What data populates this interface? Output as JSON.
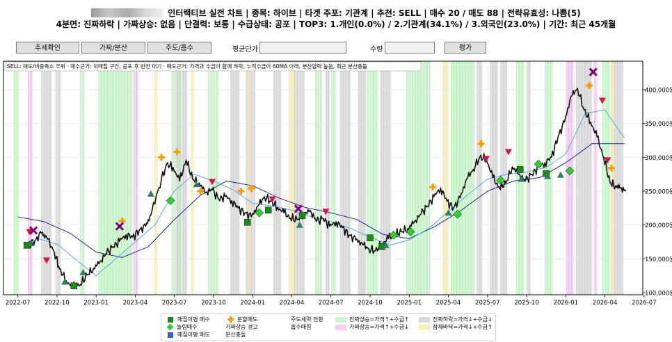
{
  "header": {
    "title_line1": "인터랙티브 실전 차트  |  종목: 하이브  |  타겟 주포: 기관계  |  추천: SELL  |  매수 20 / 매도 88  |  전략유효성: 나쁨(5)",
    "title_line2": "4분면: 진짜하락  |  가짜상승: 없음  |  단결력: 보통  |  수급상태: 공포  |  TOP3: 1.개인(0.0%) / 2.기관계(34.1%) / 3.외국인(23.0%)  |  기간: 최근 45개월"
  },
  "toolbar": {
    "btn_trend": "추세확인",
    "btn_real_fake": "가짜/분산",
    "btn_dist": "주도/흡수",
    "avg_price_label": "평균단가",
    "avg_price_value": "",
    "qty_label": "수량",
    "qty_value": "",
    "btn_eval": "평가"
  },
  "colors": {
    "price": "#000000",
    "ma20": "#5aa9d6",
    "ma60": "#1f2a8a",
    "real_up": "#ccf5cc",
    "fake_up": "#f5ccf5",
    "real_down": "#d9d9d9",
    "potential_bottom": "#f7efb8",
    "accum_buy": "#1a8a1a",
    "high_buy": "#33cc33",
    "accum_sell": "#3b5bdb",
    "split_sell": "#ff9900",
    "fake_rise_warn": "#dd1144",
    "dist_surge": "#7a007a",
    "leader_change": "#2e7d5b"
  },
  "chart_data": {
    "type": "line",
    "annotation": "SELL: 매도/비중축소 우위  ·  매수근거: 저매집 구간, 공포 후 반전 대기  ·  매도근거: 가격과 수급이 함께 하락, 누적수급이 60MA 아래, 분산압력 높음, 최근 분산충돌",
    "x_ticks": [
      "2022-07",
      "2022-10",
      "2023-01",
      "2023-04",
      "2023-07",
      "2023-10",
      "2024-01",
      "2024-04",
      "2024-07",
      "2024-10",
      "2025-01",
      "2025-04",
      "2025-07",
      "2025-10",
      "2026-01",
      "2026-04",
      "2026-07"
    ],
    "y_ticks": [
      "100,000원",
      "150,000원",
      "200,000원",
      "250,000원",
      "300,000원",
      "350,000원",
      "400,000원"
    ],
    "y_tick_values": [
      100000,
      150000,
      200000,
      250000,
      300000,
      350000,
      400000
    ],
    "ylim": [
      97000,
      442000
    ],
    "xlim": [
      -1.1,
      47.9
    ],
    "series": [
      {
        "name": "가격",
        "x": [
          0.8,
          1.3,
          1.8,
          2.2,
          2.8,
          3.2,
          3.7,
          4.2,
          4.8,
          5.3,
          5.8,
          6.3,
          6.8,
          7.3,
          7.8,
          8.3,
          8.8,
          9.3,
          9.8,
          10.2,
          10.8,
          11.4,
          11.9,
          12.4,
          12.9,
          13.4,
          13.9,
          14.4,
          14.9,
          15.4,
          15.9,
          16.4,
          16.9,
          17.4,
          17.9,
          18.4,
          18.9,
          19.4,
          19.9,
          20.4,
          20.9,
          21.4,
          21.9,
          22.4,
          22.9,
          23.4,
          23.9,
          24.4,
          24.9,
          25.4,
          25.9,
          26.4,
          26.9,
          27.4,
          27.9,
          28.4,
          28.9,
          29.4,
          29.9,
          30.4,
          30.9,
          31.4,
          31.9,
          32.4,
          32.9,
          33.4,
          33.9,
          34.4,
          34.9,
          35.4,
          35.9,
          36.4,
          36.9,
          37.4,
          37.9,
          38.4,
          38.9,
          39.4,
          39.9,
          40.4,
          40.9,
          41.4,
          41.9,
          42.4,
          42.9,
          43.4,
          43.9,
          44.4,
          44.9,
          45.4,
          45.8,
          46.2,
          46.6
        ],
        "values": [
          172000,
          176000,
          188000,
          182000,
          160000,
          135000,
          118000,
          108000,
          112000,
          126000,
          136000,
          146000,
          158000,
          168000,
          176000,
          186000,
          182000,
          192000,
          198000,
          215000,
          255000,
          290000,
          285000,
          265000,
          296000,
          268000,
          262000,
          248000,
          252000,
          238000,
          242000,
          236000,
          225000,
          218000,
          212000,
          228000,
          242000,
          235000,
          226000,
          218000,
          210000,
          208000,
          215000,
          222000,
          205000,
          210000,
          198000,
          205000,
          196000,
          185000,
          178000,
          172000,
          165000,
          162000,
          172000,
          180000,
          186000,
          190000,
          195000,
          205000,
          216000,
          228000,
          242000,
          255000,
          235000,
          225000,
          240000,
          268000,
          282000,
          300000,
          298000,
          270000,
          255000,
          262000,
          286000,
          275000,
          265000,
          275000,
          285000,
          292000,
          300000,
          330000,
          352000,
          390000,
          402000,
          370000,
          352000,
          330000,
          300000,
          262000,
          258000,
          255000,
          250000
        ]
      },
      {
        "name": "20MA",
        "x": [
          1.5,
          3,
          4.5,
          6,
          7.5,
          9,
          10.5,
          12,
          13.5,
          15,
          16.5,
          18,
          19.5,
          21,
          22.5,
          24,
          25.5,
          27,
          28.5,
          30,
          31.5,
          33,
          34.5,
          36,
          37.5,
          39,
          40.5,
          42,
          43.5,
          45,
          46.5
        ],
        "values": [
          180000,
          172000,
          148000,
          125000,
          150000,
          175000,
          200000,
          250000,
          275000,
          265000,
          252000,
          232000,
          228000,
          222000,
          212000,
          205000,
          195000,
          182000,
          170000,
          178000,
          195000,
          220000,
          245000,
          268000,
          275000,
          278000,
          285000,
          305000,
          365000,
          370000,
          328000
        ]
      },
      {
        "name": "60MA",
        "x": [
          0,
          2,
          4,
          6,
          8,
          10,
          12,
          14,
          16,
          18,
          20,
          22,
          24,
          26,
          28,
          30,
          32,
          34,
          36,
          38,
          40,
          42,
          44,
          46.5
        ],
        "values": [
          212000,
          205000,
          188000,
          160000,
          152000,
          168000,
          208000,
          244000,
          265000,
          258000,
          240000,
          226000,
          218000,
          208000,
          186000,
          180000,
          198000,
          222000,
          250000,
          265000,
          270000,
          292000,
          320000,
          320000
        ]
      }
    ],
    "bands": [
      {
        "type": "real_up",
        "ranges": [
          [
            -0.3,
            0.1
          ],
          [
            4.8,
            5.1
          ],
          [
            6.2,
            8.8
          ],
          [
            11.8,
            13.0
          ],
          [
            14.6,
            15.4
          ],
          [
            22.8,
            23.3
          ],
          [
            24.0,
            24.4
          ],
          [
            26.8,
            27.6
          ],
          [
            29.8,
            31.6
          ],
          [
            33.2,
            35.0
          ],
          [
            38.2,
            38.8
          ],
          [
            40.4,
            41.0
          ],
          [
            44.8,
            45.4
          ]
        ]
      },
      {
        "type": "fake_up",
        "ranges": [
          [
            0.8,
            1.1
          ],
          [
            8.9,
            9.2
          ],
          [
            12.7,
            12.9
          ],
          [
            42.0,
            42.6
          ],
          [
            44.2,
            44.4
          ]
        ]
      },
      {
        "type": "real_down",
        "ranges": [
          [
            1.8,
            2.6
          ],
          [
            2.9,
            3.3
          ],
          [
            12.2,
            12.5
          ],
          [
            16.3,
            17.0
          ],
          [
            17.5,
            18.2
          ],
          [
            19.6,
            20.2
          ],
          [
            21.2,
            22.0
          ],
          [
            23.6,
            23.9
          ],
          [
            24.7,
            25.5
          ],
          [
            26.1,
            26.7
          ],
          [
            27.8,
            28.6
          ],
          [
            35.2,
            35.6
          ],
          [
            36.2,
            36.8
          ],
          [
            37.0,
            37.5
          ],
          [
            39.0,
            39.3
          ],
          [
            42.8,
            44.0
          ],
          [
            45.5,
            46.4
          ]
        ]
      },
      {
        "type": "potential_bottom",
        "ranges": [
          [
            10.5,
            10.7
          ],
          [
            13.3,
            13.5
          ],
          [
            17.6,
            17.8
          ],
          [
            20.8,
            21.2
          ],
          [
            32.6,
            33.0
          ],
          [
            45.5,
            45.7
          ]
        ]
      }
    ],
    "markers": [
      {
        "type": "accum_buy",
        "x": [
          0.7,
          4.3,
          17.6,
          19.2,
          21.8,
          27.0,
          27.9,
          38.5,
          40.5
        ],
        "values": [
          170000,
          110000,
          204000,
          222000,
          214000,
          181000,
          168000,
          282000,
          276000
        ]
      },
      {
        "type": "high_buy",
        "x": [
          11.7,
          18.5,
          28.8,
          30.1,
          33.7,
          37.0,
          39.9,
          42.3
        ],
        "values": [
          236000,
          218000,
          185000,
          190000,
          216000,
          266000,
          290000,
          280000
        ]
      },
      {
        "type": "split_sell",
        "x": [
          8.0,
          11.0,
          12.2,
          14.0,
          17.1,
          17.9,
          31.8,
          35.5,
          43.8,
          45.5
        ],
        "values": [
          206000,
          300000,
          308000,
          250000,
          250000,
          254000,
          256000,
          320000,
          406000,
          284000
        ]
      },
      {
        "type": "fake_rise_warn",
        "x": [
          0.9,
          2.2,
          14.9,
          19.5,
          23.6,
          35.9,
          37.6,
          44.8,
          45.2
        ],
        "values": [
          190000,
          148000,
          264000,
          238000,
          220000,
          298000,
          308000,
          384000,
          296000
        ]
      },
      {
        "type": "dist_surge",
        "x": [
          1.2,
          7.8,
          21.5,
          44.1
        ],
        "values": [
          192000,
          198000,
          224000,
          426000
        ]
      },
      {
        "type": "leader_change",
        "x": [
          1.0,
          3.6,
          5.0,
          10.2,
          13.7,
          21.6,
          28.2,
          33.0,
          38.6,
          40.6,
          41.6
        ],
        "values": [
          173000,
          116000,
          130000,
          246000,
          260000,
          200000,
          170000,
          218000,
          268000,
          272000,
          274000
        ]
      }
    ],
    "legend": [
      {
        "label": "매집이평 매수",
        "type": "accum_buy",
        "shape": "square"
      },
      {
        "label": "분할매도",
        "type": "split_sell",
        "shape": "plus"
      },
      {
        "label": "주도세력 전환",
        "type": "leader_change",
        "shape": "none"
      },
      {
        "label": "진짜상승=가격↑+수급↑",
        "type": "real_up",
        "shape": "band"
      },
      {
        "label": "진짜하락=가격↓+수급↓",
        "type": "real_down",
        "shape": "band"
      },
      {
        "label": "눌림매수",
        "type": "high_buy",
        "shape": "diamond"
      },
      {
        "label": "가짜상승 경고",
        "type": "fake_rise_warn",
        "shape": "none"
      },
      {
        "label": "흡수매집",
        "type": "absorb",
        "shape": "none"
      },
      {
        "label": "가짜상승=가격↑+수급↓",
        "type": "fake_up",
        "shape": "band"
      },
      {
        "label": "잠재바닥=가격↓+수급↑",
        "type": "potential_bottom",
        "shape": "band"
      },
      {
        "label": "매집이평 매도",
        "type": "accum_sell",
        "shape": "square"
      },
      {
        "label": "분산충돌",
        "type": "dist_surge",
        "shape": "none"
      }
    ],
    "grid": true,
    "y_axis_side": "right"
  }
}
